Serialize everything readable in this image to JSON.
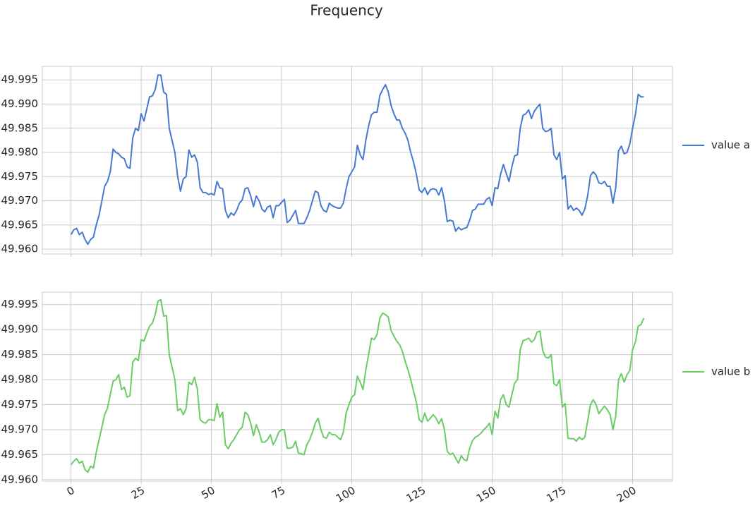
{
  "title": "Frequency",
  "chart_data": [
    {
      "type": "line",
      "show_xtick_labels": false,
      "x": [
        0,
        1,
        2,
        3,
        4,
        5,
        6,
        7,
        8,
        9,
        10,
        11,
        12,
        13,
        14,
        15,
        16,
        17,
        18,
        19,
        20,
        21,
        22,
        23,
        24,
        25,
        26,
        27,
        28,
        29,
        30,
        31,
        32,
        33,
        34,
        35,
        36,
        37,
        38,
        39,
        40,
        41,
        42,
        43,
        44,
        45,
        46,
        47,
        48,
        49,
        50,
        51,
        52,
        53,
        54,
        55,
        56,
        57,
        58,
        59,
        60,
        61,
        62,
        63,
        64,
        65,
        66,
        67,
        68,
        69,
        70,
        71,
        72,
        73,
        74,
        75,
        76,
        77,
        78,
        79,
        80,
        81,
        82,
        83,
        84,
        85,
        86,
        87,
        88,
        89,
        90,
        91,
        92,
        93,
        94,
        95,
        96,
        97,
        98,
        99,
        100,
        101,
        102,
        103,
        104,
        105,
        106,
        107,
        108,
        109,
        110,
        111,
        112,
        113,
        114,
        115,
        116,
        117,
        118,
        119,
        120,
        121,
        122,
        123,
        124,
        125,
        126,
        127,
        128,
        129,
        130,
        131,
        132,
        133,
        134,
        135,
        136,
        137,
        138,
        139,
        140,
        141,
        142,
        143,
        144,
        145,
        146,
        147,
        148,
        149,
        150,
        151,
        152,
        153,
        154,
        155,
        156,
        157,
        158,
        159,
        160,
        161,
        162,
        163,
        164,
        165,
        166,
        167,
        168,
        169,
        170,
        171,
        172,
        173,
        174,
        175,
        176,
        177,
        178,
        179,
        180,
        181,
        182,
        183,
        184,
        185,
        186,
        187,
        188,
        189,
        190,
        191,
        192,
        193,
        194,
        195,
        196,
        197,
        198,
        199,
        200,
        201,
        202,
        203,
        204
      ],
      "series": [
        {
          "name": "value a",
          "color": "#4878cf",
          "values": [
            49.963,
            49.964,
            49.9643,
            49.963,
            49.9635,
            49.962,
            49.961,
            49.962,
            49.9625,
            49.965,
            49.967,
            49.97,
            49.973,
            49.974,
            49.976,
            49.9807,
            49.98,
            49.9797,
            49.979,
            49.9787,
            49.977,
            49.9767,
            49.983,
            49.985,
            49.9845,
            49.988,
            49.9865,
            49.989,
            49.9915,
            49.9917,
            49.993,
            49.996,
            49.996,
            49.9925,
            49.992,
            49.985,
            49.9825,
            49.98,
            49.975,
            49.972,
            49.9745,
            49.975,
            49.9805,
            49.979,
            49.9795,
            49.978,
            49.9727,
            49.9717,
            49.9717,
            49.9713,
            49.9715,
            49.9712,
            49.974,
            49.9727,
            49.9725,
            49.968,
            49.9665,
            49.9675,
            49.967,
            49.968,
            49.9695,
            49.9702,
            49.9725,
            49.9727,
            49.971,
            49.9688,
            49.971,
            49.97,
            49.9683,
            49.9677,
            49.9687,
            49.969,
            49.9665,
            49.969,
            49.969,
            49.9697,
            49.9703,
            49.9655,
            49.966,
            49.967,
            49.968,
            49.9653,
            49.9653,
            49.9653,
            49.9665,
            49.968,
            49.97,
            49.972,
            49.9717,
            49.969,
            49.968,
            49.9677,
            49.9695,
            49.969,
            49.9687,
            49.9685,
            49.9685,
            49.9695,
            49.9725,
            49.975,
            49.976,
            49.977,
            49.9815,
            49.9795,
            49.9785,
            49.9825,
            49.9855,
            49.9878,
            49.9883,
            49.9883,
            49.9918,
            49.993,
            49.994,
            49.9925,
            49.9897,
            49.988,
            49.9867,
            49.9867,
            49.985,
            49.984,
            49.9825,
            49.98,
            49.978,
            49.9755,
            49.9723,
            49.9717,
            49.9727,
            49.9713,
            49.9723,
            49.9725,
            49.9723,
            49.9712,
            49.9727,
            49.97,
            49.9657,
            49.966,
            49.9658,
            49.9637,
            49.9645,
            49.964,
            49.9643,
            49.9645,
            49.966,
            49.968,
            49.9683,
            49.9693,
            49.9693,
            49.9693,
            49.9703,
            49.9707,
            49.969,
            49.9727,
            49.9725,
            49.9755,
            49.9775,
            49.9757,
            49.974,
            49.977,
            49.9793,
            49.9795,
            49.985,
            49.9877,
            49.988,
            49.9888,
            49.987,
            49.9885,
            49.9893,
            49.99,
            49.985,
            49.9843,
            49.9845,
            49.985,
            49.9795,
            49.9785,
            49.98,
            49.9745,
            49.9752,
            49.9683,
            49.969,
            49.968,
            49.9685,
            49.968,
            49.967,
            49.9683,
            49.971,
            49.9752,
            49.976,
            49.9753,
            49.9737,
            49.9735,
            49.974,
            49.973,
            49.973,
            49.9695,
            49.9727,
            49.9803,
            49.9813,
            49.9797,
            49.98,
            49.9817,
            49.985,
            49.9878,
            49.992,
            49.9915,
            49.9915
          ]
        }
      ],
      "xlim": [
        -10.2,
        214.2
      ],
      "xticks": [
        0,
        25,
        50,
        75,
        100,
        125,
        150,
        175,
        200
      ],
      "ylim": [
        49.959,
        49.9978
      ],
      "yticks": [
        {
          "value": 49.96,
          "label": "49.960"
        },
        {
          "value": 49.965,
          "label": "49.965"
        },
        {
          "value": 49.97,
          "label": "49.970"
        },
        {
          "value": 49.975,
          "label": "49.975"
        },
        {
          "value": 49.98,
          "label": "49.980"
        },
        {
          "value": 49.985,
          "label": "49.985"
        },
        {
          "value": 49.99,
          "label": "49.990"
        },
        {
          "value": 49.995,
          "label": "49.995"
        }
      ],
      "grid": true,
      "legend": "right"
    },
    {
      "type": "line",
      "show_xtick_labels": true,
      "x": [
        0,
        1,
        2,
        3,
        4,
        5,
        6,
        7,
        8,
        9,
        10,
        11,
        12,
        13,
        14,
        15,
        16,
        17,
        18,
        19,
        20,
        21,
        22,
        23,
        24,
        25,
        26,
        27,
        28,
        29,
        30,
        31,
        32,
        33,
        34,
        35,
        36,
        37,
        38,
        39,
        40,
        41,
        42,
        43,
        44,
        45,
        46,
        47,
        48,
        49,
        50,
        51,
        52,
        53,
        54,
        55,
        56,
        57,
        58,
        59,
        60,
        61,
        62,
        63,
        64,
        65,
        66,
        67,
        68,
        69,
        70,
        71,
        72,
        73,
        74,
        75,
        76,
        77,
        78,
        79,
        80,
        81,
        82,
        83,
        84,
        85,
        86,
        87,
        88,
        89,
        90,
        91,
        92,
        93,
        94,
        95,
        96,
        97,
        98,
        99,
        100,
        101,
        102,
        103,
        104,
        105,
        106,
        107,
        108,
        109,
        110,
        111,
        112,
        113,
        114,
        115,
        116,
        117,
        118,
        119,
        120,
        121,
        122,
        123,
        124,
        125,
        126,
        127,
        128,
        129,
        130,
        131,
        132,
        133,
        134,
        135,
        136,
        137,
        138,
        139,
        140,
        141,
        142,
        143,
        144,
        145,
        146,
        147,
        148,
        149,
        150,
        151,
        152,
        153,
        154,
        155,
        156,
        157,
        158,
        159,
        160,
        161,
        162,
        163,
        164,
        165,
        166,
        167,
        168,
        169,
        170,
        171,
        172,
        173,
        174,
        175,
        176,
        177,
        178,
        179,
        180,
        181,
        182,
        183,
        184,
        185,
        186,
        187,
        188,
        189,
        190,
        191,
        192,
        193,
        194,
        195,
        196,
        197,
        198,
        199,
        200,
        201,
        202,
        203,
        204
      ],
      "series": [
        {
          "name": "value b",
          "color": "#6acc65",
          "values": [
            49.963,
            49.9637,
            49.9642,
            49.9633,
            49.9637,
            49.962,
            49.9615,
            49.9627,
            49.9623,
            49.9655,
            49.968,
            49.9705,
            49.973,
            49.9743,
            49.977,
            49.9797,
            49.98,
            49.981,
            49.978,
            49.9785,
            49.9765,
            49.9768,
            49.9835,
            49.9843,
            49.9838,
            49.988,
            49.9877,
            49.9893,
            49.9907,
            49.9913,
            49.993,
            49.9957,
            49.996,
            49.9927,
            49.9928,
            49.985,
            49.9825,
            49.98,
            49.9738,
            49.9742,
            49.973,
            49.9742,
            49.9795,
            49.979,
            49.9805,
            49.978,
            49.972,
            49.9715,
            49.9713,
            49.972,
            49.972,
            49.9718,
            49.9752,
            49.9725,
            49.9735,
            49.967,
            49.9662,
            49.9673,
            49.968,
            49.969,
            49.97,
            49.9705,
            49.9735,
            49.973,
            49.9713,
            49.9688,
            49.971,
            49.9695,
            49.9675,
            49.9675,
            49.968,
            49.969,
            49.967,
            49.968,
            49.9695,
            49.97,
            49.97,
            49.9663,
            49.9663,
            49.9665,
            49.9677,
            49.9653,
            49.9652,
            49.965,
            49.967,
            49.968,
            49.9695,
            49.9713,
            49.9723,
            49.97,
            49.9685,
            49.9683,
            49.9695,
            49.969,
            49.969,
            49.9685,
            49.968,
            49.9695,
            49.9733,
            49.975,
            49.9765,
            49.977,
            49.9807,
            49.9795,
            49.978,
            49.982,
            49.985,
            49.9883,
            49.988,
            49.989,
            49.9923,
            49.9933,
            49.993,
            49.9925,
            49.9898,
            49.9887,
            49.9877,
            49.987,
            49.9857,
            49.9837,
            49.982,
            49.98,
            49.9777,
            49.9755,
            49.972,
            49.9715,
            49.9733,
            49.9717,
            49.9723,
            49.973,
            49.9723,
            49.9712,
            49.9722,
            49.97,
            49.9657,
            49.965,
            49.9653,
            49.9643,
            49.9633,
            49.9648,
            49.964,
            49.9638,
            49.9663,
            49.9678,
            49.9685,
            49.9688,
            49.9693,
            49.97,
            49.9705,
            49.9713,
            49.969,
            49.9737,
            49.9723,
            49.976,
            49.977,
            49.975,
            49.9745,
            49.977,
            49.9793,
            49.98,
            49.986,
            49.9878,
            49.988,
            49.9883,
            49.9875,
            49.988,
            49.9895,
            49.9897,
            49.9858,
            49.9845,
            49.9843,
            49.985,
            49.9792,
            49.9788,
            49.98,
            49.9745,
            49.9752,
            49.9683,
            49.9682,
            49.9682,
            49.9677,
            49.9685,
            49.968,
            49.9685,
            49.9717,
            49.975,
            49.976,
            49.975,
            49.9732,
            49.974,
            49.9747,
            49.974,
            49.973,
            49.97,
            49.9727,
            49.98,
            49.9812,
            49.9795,
            49.981,
            49.9818,
            49.986,
            49.9875,
            49.9907,
            49.991,
            49.9923
          ]
        }
      ],
      "xlim": [
        -10.2,
        214.2
      ],
      "xticks": [
        0,
        25,
        50,
        75,
        100,
        125,
        150,
        175,
        200
      ],
      "ylim": [
        49.9597,
        49.9975
      ],
      "yticks": [
        {
          "value": 49.96,
          "label": "49.960"
        },
        {
          "value": 49.965,
          "label": "49.965"
        },
        {
          "value": 49.97,
          "label": "49.970"
        },
        {
          "value": 49.975,
          "label": "49.975"
        },
        {
          "value": 49.98,
          "label": "49.980"
        },
        {
          "value": 49.985,
          "label": "49.985"
        },
        {
          "value": 49.99,
          "label": "49.990"
        },
        {
          "value": 49.995,
          "label": "49.995"
        }
      ],
      "grid": true,
      "legend": "right"
    }
  ]
}
